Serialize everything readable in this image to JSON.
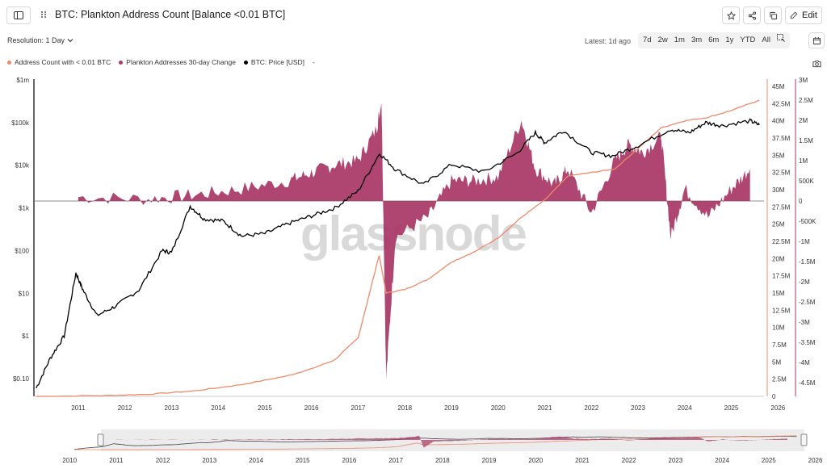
{
  "header": {
    "title": "BTC: Plankton Address Count [Balance <0.01 BTC]",
    "edit_label": "Edit",
    "icons": [
      "sidebar-toggle-icon",
      "drag-handle-icon",
      "star-icon",
      "share-icon",
      "copy-icon",
      "pencil-icon"
    ]
  },
  "controls": {
    "resolution_label": "Resolution: 1 Day",
    "latest_label": "Latest: 1d ago",
    "ranges": [
      "7d",
      "2w",
      "1m",
      "3m",
      "6m",
      "1y",
      "YTD",
      "All"
    ],
    "icons": [
      "log-scale-icon",
      "calendar-icon",
      "camera-icon"
    ]
  },
  "legend": [
    {
      "label": "Address Count with < 0.01 BTC",
      "color": "#f0896a"
    },
    {
      "label": "Plankton Addresses 30-day Change",
      "color": "#b03a6a"
    },
    {
      "label": "BTC: Price [USD]",
      "color": "#000000"
    },
    {
      "label": "-",
      "color": ""
    }
  ],
  "watermark": "glassnode",
  "colors": {
    "address_count": "#f0896a",
    "change": "#a83565",
    "price": "#000000",
    "axis_right": "#c0396b"
  },
  "chart_data": {
    "type": "line",
    "title": "BTC: Plankton Address Count [Balance <0.01 BTC]",
    "x_ticks": [
      "2011",
      "2012",
      "2013",
      "2014",
      "2015",
      "2016",
      "2017",
      "2018",
      "2019",
      "2020",
      "2021",
      "2022",
      "2023",
      "2024",
      "2025",
      "2026"
    ],
    "y_left": {
      "label": "BTC: Price [USD]",
      "scale": "log",
      "ticks": [
        "$0.10",
        "$1",
        "$10",
        "$100",
        "$1k",
        "$10k",
        "$100k",
        "$1m"
      ]
    },
    "y_right1": {
      "label": "Address Count",
      "ticks": [
        "0",
        "2.5M",
        "5M",
        "7.5M",
        "10M",
        "12.5M",
        "15M",
        "17.5M",
        "20M",
        "22.5M",
        "25M",
        "27.5M",
        "30M",
        "32.5M",
        "35M",
        "37.5M",
        "40M",
        "42.5M",
        "45M"
      ]
    },
    "y_right2": {
      "label": "30-day Change",
      "ticks": [
        "-4.5M",
        "-4M",
        "-3.5M",
        "-3M",
        "-2.5M",
        "-2M",
        "-1.5M",
        "-1M",
        "-500K",
        "0",
        "500K",
        "1M",
        "1.5M",
        "2M",
        "2.5M",
        "3M"
      ]
    },
    "series": [
      {
        "name": "BTC: Price [USD]",
        "x": [
          2010.6,
          2010.9,
          2011.2,
          2011.45,
          2011.6,
          2011.9,
          2012.3,
          2012.8,
          2013.3,
          2013.5,
          2013.9,
          2014.2,
          2014.6,
          2015.0,
          2015.5,
          2016.0,
          2016.5,
          2017.0,
          2017.5,
          2017.96,
          2018.3,
          2018.9,
          2019.5,
          2020.2,
          2020.9,
          2021.3,
          2021.5,
          2021.9,
          2022.5,
          2022.95,
          2023.5,
          2024.2,
          2024.6,
          2024.95,
          2025.3,
          2025.9,
          2026.1
        ],
        "values": [
          0.06,
          0.3,
          1,
          30,
          12,
          3,
          5,
          12,
          100,
          90,
          1100,
          550,
          500,
          220,
          250,
          430,
          650,
          1000,
          2500,
          19000,
          8000,
          3500,
          10500,
          7000,
          19000,
          58000,
          34000,
          65000,
          20000,
          16500,
          29000,
          70000,
          58000,
          100000,
          85000,
          110000,
          88000
        ]
      },
      {
        "name": "Address Count with < 0.01 BTC",
        "x": [
          2010.6,
          2012,
          2013,
          2014,
          2015,
          2016,
          2016.5,
          2017,
          2017.5,
          2017.95,
          2018.1,
          2018.5,
          2019,
          2019.5,
          2020,
          2020.5,
          2021,
          2021.5,
          2022,
          2022.5,
          2023,
          2023.5,
          2024,
          2024.5,
          2025,
          2025.5,
          2026.1
        ],
        "values": [
          0,
          0.1,
          0.3,
          0.8,
          1.7,
          3,
          4,
          5.3,
          8.5,
          20.5,
          15,
          15.5,
          17,
          19.5,
          21,
          23,
          26,
          28.5,
          32,
          32.5,
          33,
          36,
          39,
          40,
          40.5,
          41.5,
          43
        ]
      },
      {
        "name": "Plankton Addresses 30-day Change",
        "x": [
          2011.5,
          2013,
          2014,
          2015,
          2016,
          2016.5,
          2017,
          2017.5,
          2017.9,
          2018.0,
          2018.1,
          2018.3,
          2019,
          2019.5,
          2020,
          2020.5,
          2021,
          2021.3,
          2021.7,
          2022,
          2022.5,
          2023,
          2023.3,
          2023.6,
          2024,
          2024.2,
          2024.5,
          2025,
          2025.5,
          2025.9
        ],
        "values": [
          0.1,
          0.05,
          0.15,
          0.3,
          0.5,
          0.7,
          0.9,
          1.0,
          1.8,
          2.5,
          -4.4,
          -0.9,
          -0.4,
          0.5,
          0.5,
          0.6,
          2.0,
          0.8,
          0.4,
          0.8,
          -0.3,
          1.0,
          1.4,
          1.2,
          1.6,
          -0.9,
          0.3,
          -0.4,
          0.3,
          0.8
        ]
      }
    ],
    "navigator_x_ticks": [
      "2010",
      "2011",
      "2012",
      "2013",
      "2014",
      "2015",
      "2016",
      "2017",
      "2018",
      "2019",
      "2020",
      "2021",
      "2022",
      "2023",
      "2024",
      "2025",
      "2026"
    ],
    "grid": false,
    "legend_position": "top-left"
  }
}
